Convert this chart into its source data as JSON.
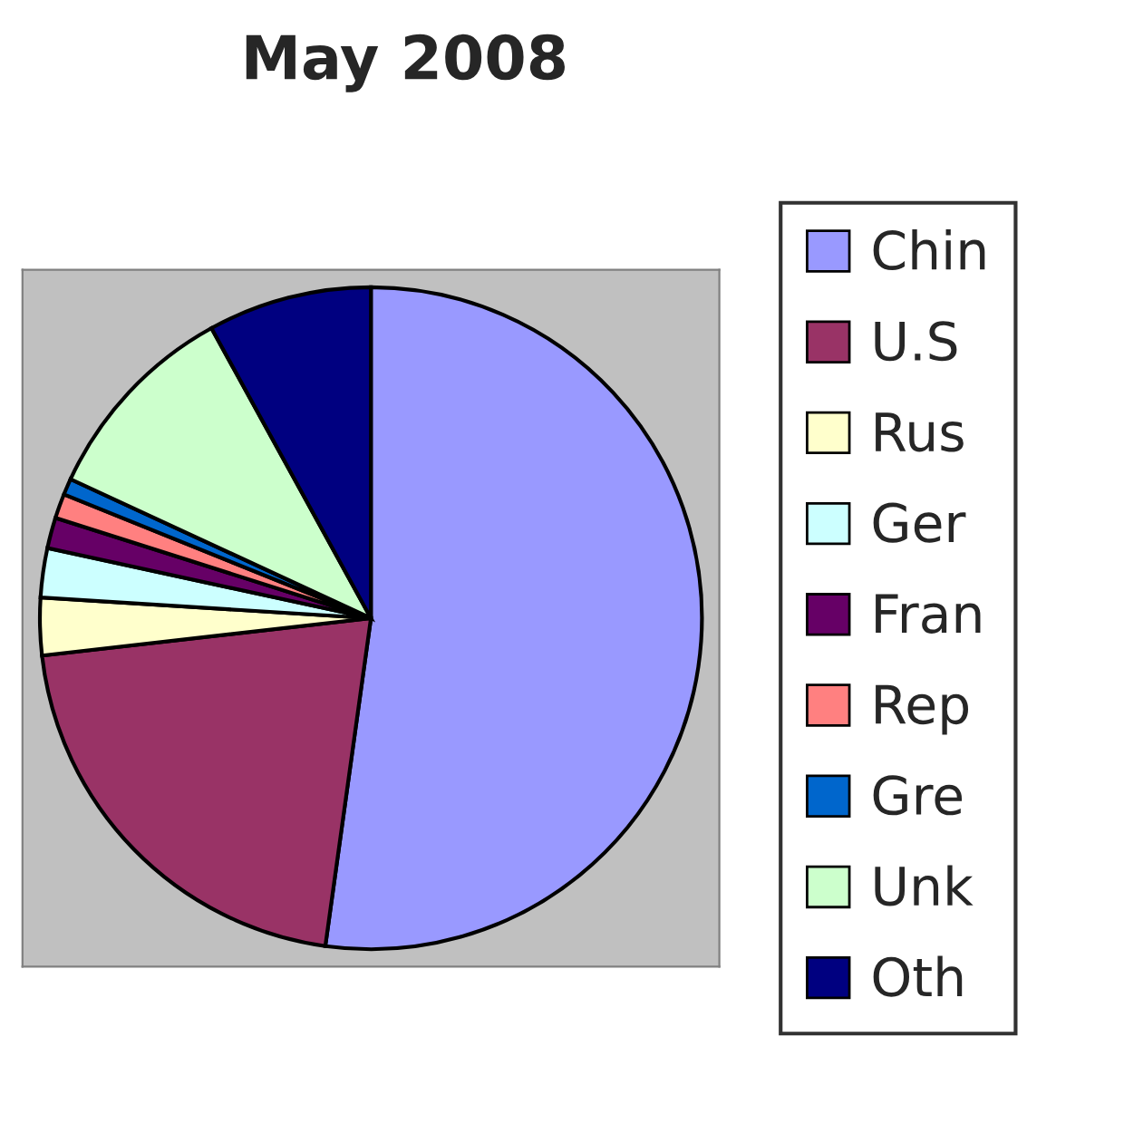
{
  "chart_data": {
    "type": "pie",
    "title": "May 2008",
    "categories": [
      "Chin",
      "U.S",
      "Rus",
      "Ger",
      "Fran",
      "Rep",
      "Gre",
      "Unk",
      "Oth"
    ],
    "values": [
      52.2,
      21.0,
      2.8,
      2.4,
      1.5,
      1.2,
      0.8,
      10.1,
      8.0
    ],
    "colors": [
      "#9999ff",
      "#993366",
      "#ffffcc",
      "#ccffff",
      "#660066",
      "#ff8080",
      "#0066cc",
      "#ccffcc",
      "#000080"
    ],
    "legend": "right"
  }
}
